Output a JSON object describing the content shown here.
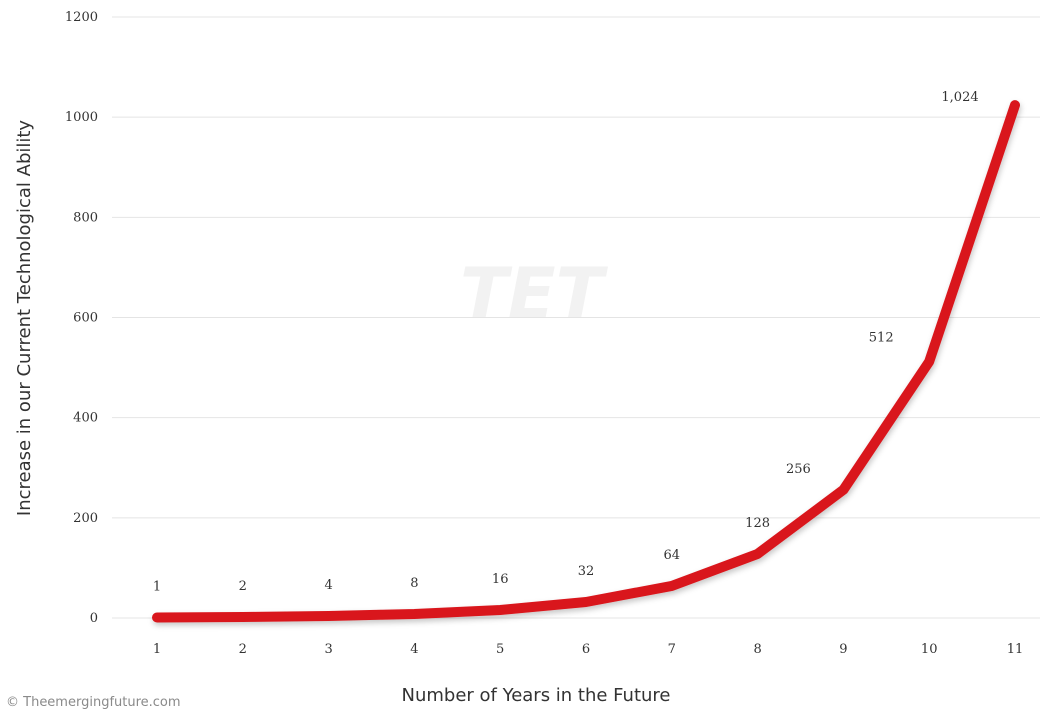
{
  "chart_data": {
    "type": "line",
    "xlabel": "Number of Years in the Future",
    "ylabel": "Increase in our Current Technological Ability",
    "x": [
      1,
      2,
      3,
      4,
      5,
      6,
      7,
      8,
      9,
      10,
      11
    ],
    "x_tick_labels": [
      "1",
      "2",
      "3",
      "4",
      "5",
      "6",
      "7",
      "8",
      "9",
      "10",
      "11"
    ],
    "y_ticks": [
      0,
      200,
      400,
      600,
      800,
      1000,
      1200
    ],
    "y_tick_labels": [
      "0",
      "200",
      "400",
      "600",
      "800",
      "1000",
      "1200"
    ],
    "ylim": [
      0,
      1200
    ],
    "series": [
      {
        "values": [
          1,
          2,
          4,
          8,
          16,
          32,
          64,
          128,
          256,
          512,
          1024
        ],
        "data_labels": [
          "1",
          "2",
          "4",
          "8",
          "16",
          "32",
          "64",
          "128",
          "256",
          "512",
          "1,024"
        ],
        "color": "#d9161c"
      }
    ],
    "highlighted_labels": [
      "32",
      "1,024"
    ],
    "highlight_color": "#d9161c",
    "label_color": "#333333",
    "grid": true,
    "grid_axis": "y",
    "legend": "none",
    "watermark": "TET"
  },
  "credit": "© Theemergingfuture.com"
}
